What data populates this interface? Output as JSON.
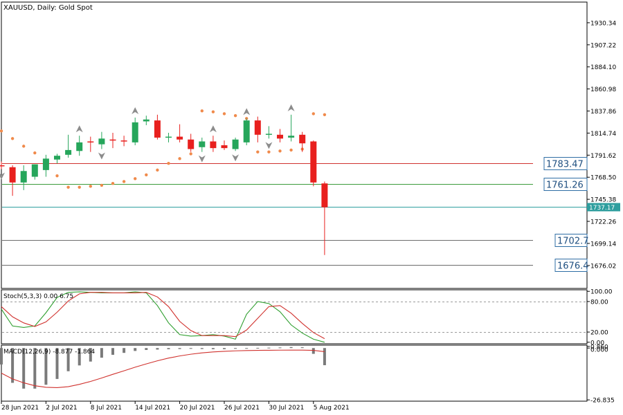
{
  "header": {
    "symbol_line": "XAUUSD, Daily:  Gold Spot",
    "stoch_label": "Stoch(5,3,3) 0.00 6.75",
    "macd_label": "MACD(12,26,9) -8.877 -1.864"
  },
  "chart_data": [
    {
      "type": "candlestick",
      "title": "XAUUSD, Daily:  Gold Spot",
      "y_ticks": [
        "1930.34",
        "1907.22",
        "1884.10",
        "1860.98",
        "1837.86",
        "1814.74",
        "1791.62",
        "1768.50",
        "1745.38",
        "1722.26",
        "1699.14",
        "1676.02"
      ],
      "ylim": [
        1652,
        1952
      ],
      "x_tick_labels": [
        {
          "index": 0,
          "label": "28 Jun 2021"
        },
        {
          "index": 4,
          "label": "2 Jul 2021"
        },
        {
          "index": 8,
          "label": "8 Jul 2021"
        },
        {
          "index": 12,
          "label": "14 Jul 2021"
        },
        {
          "index": 16,
          "label": "20 Jul 2021"
        },
        {
          "index": 20,
          "label": "26 Jul 2021"
        },
        {
          "index": 24,
          "label": "30 Jul 2021"
        },
        {
          "index": 28,
          "label": "5 Aug 2021"
        }
      ],
      "candles": [
        {
          "o": 1781,
          "h": 1785,
          "l": 1777,
          "c": 1780
        },
        {
          "o": 1779,
          "h": 1781,
          "l": 1749,
          "c": 1763
        },
        {
          "o": 1763,
          "h": 1781,
          "l": 1755,
          "c": 1775
        },
        {
          "o": 1769,
          "h": 1782,
          "l": 1766,
          "c": 1782
        },
        {
          "o": 1776,
          "h": 1792,
          "l": 1769,
          "c": 1788
        },
        {
          "o": 1787,
          "h": 1793,
          "l": 1783,
          "c": 1791
        },
        {
          "o": 1792,
          "h": 1813,
          "l": 1789,
          "c": 1797
        },
        {
          "o": 1796,
          "h": 1812,
          "l": 1791,
          "c": 1805
        },
        {
          "o": 1806,
          "h": 1811,
          "l": 1795,
          "c": 1805
        },
        {
          "o": 1803,
          "h": 1816,
          "l": 1798,
          "c": 1809
        },
        {
          "o": 1808,
          "h": 1815,
          "l": 1799,
          "c": 1807
        },
        {
          "o": 1807,
          "h": 1812,
          "l": 1801,
          "c": 1806
        },
        {
          "o": 1805,
          "h": 1831,
          "l": 1802,
          "c": 1826
        },
        {
          "o": 1827,
          "h": 1833,
          "l": 1823,
          "c": 1829
        },
        {
          "o": 1828,
          "h": 1834,
          "l": 1808,
          "c": 1810
        },
        {
          "o": 1810,
          "h": 1815,
          "l": 1805,
          "c": 1811
        },
        {
          "o": 1811,
          "h": 1824,
          "l": 1805,
          "c": 1808
        },
        {
          "o": 1808,
          "h": 1814,
          "l": 1795,
          "c": 1798
        },
        {
          "o": 1800,
          "h": 1810,
          "l": 1795,
          "c": 1806
        },
        {
          "o": 1806,
          "h": 1812,
          "l": 1795,
          "c": 1799
        },
        {
          "o": 1802,
          "h": 1807,
          "l": 1797,
          "c": 1799
        },
        {
          "o": 1798,
          "h": 1810,
          "l": 1796,
          "c": 1808
        },
        {
          "o": 1805,
          "h": 1830,
          "l": 1802,
          "c": 1828
        },
        {
          "o": 1828,
          "h": 1832,
          "l": 1805,
          "c": 1813
        },
        {
          "o": 1813,
          "h": 1822,
          "l": 1809,
          "c": 1814
        },
        {
          "o": 1813,
          "h": 1819,
          "l": 1805,
          "c": 1809
        },
        {
          "o": 1810,
          "h": 1834,
          "l": 1806,
          "c": 1812
        },
        {
          "o": 1813,
          "h": 1816,
          "l": 1795,
          "c": 1804
        },
        {
          "o": 1806,
          "h": 1807,
          "l": 1759,
          "c": 1763
        },
        {
          "o": 1762,
          "h": 1764,
          "l": 1687,
          "c": 1737
        }
      ],
      "sar": [
        1817,
        1809,
        1801,
        1794,
        1781,
        1770,
        1758,
        1758,
        1759,
        1760,
        1762,
        1764,
        1767,
        1771,
        1776,
        1783,
        1788,
        1793,
        1838,
        1837,
        1835,
        1833,
        1830,
        1795,
        1795,
        1796,
        1797,
        1798,
        1835,
        1834
      ],
      "fractals_up": [
        7,
        12,
        19,
        22,
        26
      ],
      "fractals_down": [
        0,
        9,
        18,
        21,
        24
      ],
      "horizontal_lines": [
        {
          "value": 1783.47,
          "color": "#d0312d",
          "label": "1783.47",
          "label_style": "box"
        },
        {
          "value": 1761.26,
          "color": "#3a9a3a",
          "label": "1761.26",
          "label_style": "box"
        },
        {
          "value": 1737.17,
          "color": "#2e9e9e",
          "label": "1737.17",
          "label_style": "price"
        },
        {
          "value": 1702.7,
          "color": "#6b6b6b",
          "label": "1702.7",
          "label_style": "box"
        },
        {
          "value": 1676.4,
          "color": "#6b6b6b",
          "label": "1676.4",
          "label_style": "box"
        }
      ],
      "colors": {
        "bull": "#26a65b",
        "bear": "#e8201e",
        "sar": "#f08a4b",
        "fractal": "#8c8c8c"
      }
    },
    {
      "type": "line",
      "title": "Stoch(5,3,3) 0.00 6.75",
      "y_ticks": [
        "100.00",
        "80.00",
        "20.00",
        "0.00"
      ],
      "ylim": [
        -3,
        103
      ],
      "levels": [
        80,
        20
      ],
      "series": [
        {
          "name": "main",
          "color": "#2e9e2e",
          "values": [
            65,
            32,
            29,
            32,
            58,
            88,
            98,
            99,
            98,
            97,
            97,
            97,
            99,
            97,
            72,
            38,
            15,
            12,
            13,
            15,
            12,
            6,
            55,
            80,
            76,
            60,
            34,
            18,
            6,
            0
          ]
        },
        {
          "name": "signal",
          "color": "#d0312d",
          "values": [
            70,
            50,
            38,
            31,
            40,
            59,
            81,
            95,
            98,
            98,
            97,
            97,
            97,
            98,
            89,
            70,
            41,
            23,
            13,
            13,
            13,
            11,
            24,
            47,
            70,
            72,
            57,
            37,
            19,
            7
          ]
        }
      ]
    },
    {
      "type": "bar",
      "title": "MACD(12,26,9) -8.877 -1.864",
      "y_ticks": [
        "0.860",
        "0.000",
        "-26.835"
      ],
      "ylim": [
        -27.5,
        1.5
      ],
      "histogram": [
        -8.5,
        -18,
        -21,
        -21,
        -19,
        -16,
        -12,
        -9,
        -7,
        -5,
        -3.5,
        -2.5,
        -1.5,
        -1.0,
        -0.8,
        -0.6,
        -0.5,
        -0.4,
        -0.5,
        -0.6,
        -0.6,
        -0.4,
        -0.2,
        0.1,
        0.2,
        0.3,
        0.5,
        0.4,
        -3.0,
        -8.877
      ],
      "signal": [
        -13,
        -16,
        -18,
        -19.5,
        -20.3,
        -20.5,
        -20,
        -18.8,
        -17.3,
        -15.5,
        -13.6,
        -11.8,
        -9.9,
        -8.2,
        -6.6,
        -5.2,
        -4.1,
        -3.2,
        -2.5,
        -2.0,
        -1.7,
        -1.45,
        -1.3,
        -1.2,
        -1.15,
        -1.1,
        -1.08,
        -1.06,
        -1.2,
        -1.864
      ],
      "colors": {
        "histogram": "#7a7a7a",
        "signal": "#d0312d"
      }
    }
  ]
}
